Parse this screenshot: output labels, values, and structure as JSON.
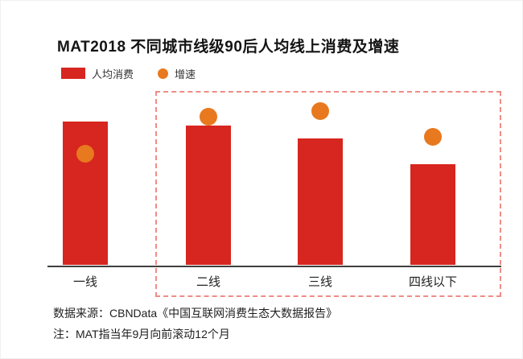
{
  "title": "MAT2018 不同城市线级90后人均线上消费及增速",
  "legend": {
    "consumption_label": "人均消费",
    "growth_label": "增速"
  },
  "footer": {
    "source_line": "数据来源：CBNData《中国互联网消费生态大数据报告》",
    "note_line": "注：MAT指当年9月向前滚动12个月"
  },
  "colors": {
    "bar_red": "#d7251f",
    "dot_orange": "#e8791e",
    "highlight_border": "#ef8c86",
    "axis": "#3f3f3f"
  },
  "chart_data": {
    "type": "bar",
    "title": "MAT2018 不同城市线级90后人均线上消费及增速",
    "categories": [
      "一线",
      "二线",
      "三线",
      "四线以下"
    ],
    "series": [
      {
        "name": "人均消费",
        "type": "bar",
        "values_relative": [
          100,
          97,
          88,
          70
        ]
      },
      {
        "name": "增速",
        "type": "scatter",
        "values_relative": [
          60,
          80,
          83,
          69
        ]
      }
    ],
    "xlabel": "",
    "ylabel": "",
    "value_axis": "none shown; values are relative estimates (一线 人均消费 = 100; 增速 as % of plot height)",
    "grid": false,
    "legend_position": "top-left",
    "highlight": {
      "style": "dashed-box",
      "categories": [
        "二线",
        "三线",
        "四线以下"
      ]
    }
  }
}
